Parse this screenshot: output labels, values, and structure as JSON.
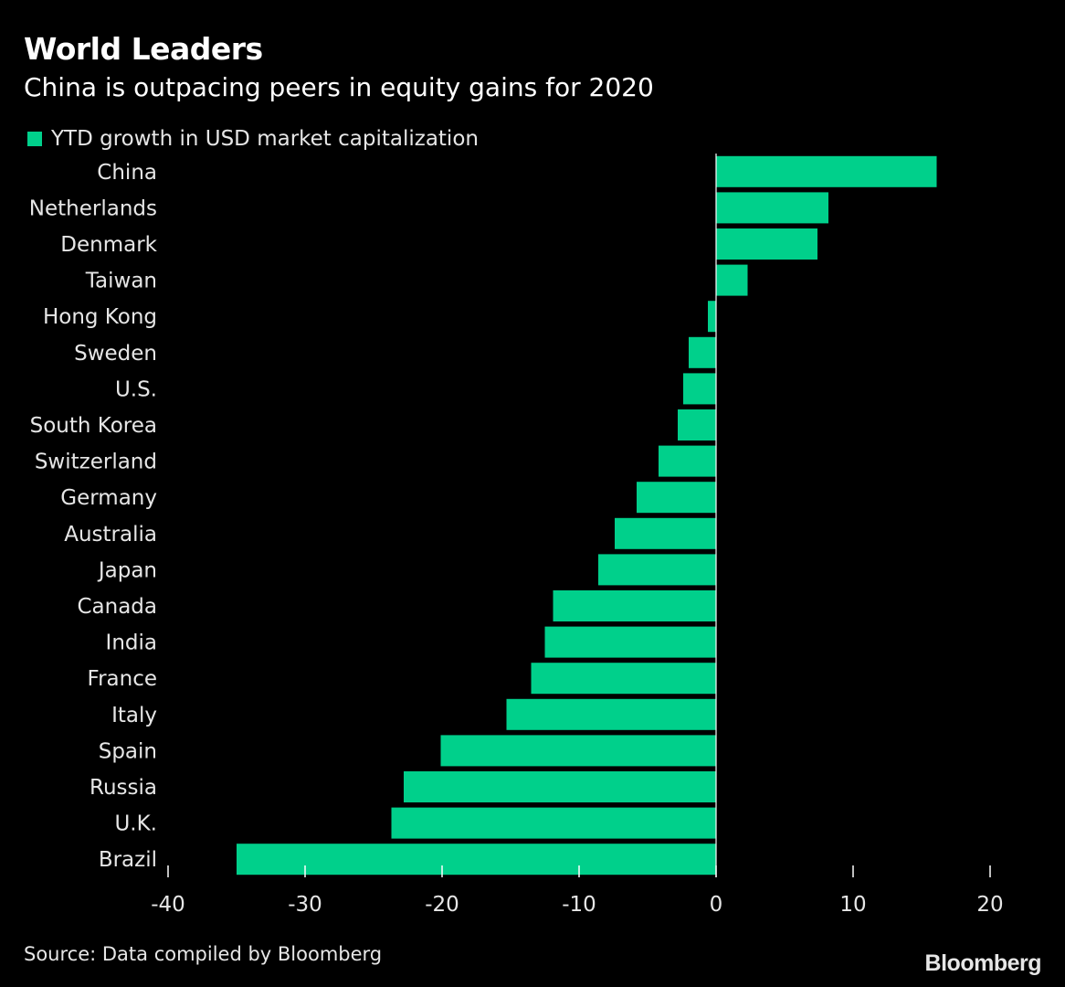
{
  "header": {
    "title": "World Leaders",
    "subtitle": "China is outpacing peers in equity gains for 2020"
  },
  "footer": {
    "source": "Source: Data compiled by Bloomberg",
    "brand": "Bloomberg"
  },
  "colors": {
    "background": "#000000",
    "bar": "#00d08b",
    "text": "#ffffff",
    "muted_text": "#e6e6e6"
  },
  "chart_data": {
    "type": "bar",
    "orientation": "horizontal",
    "title": "World Leaders",
    "subtitle": "China is outpacing peers in equity gains for 2020",
    "categories": [
      "China",
      "Netherlands",
      "Denmark",
      "Taiwan",
      "Hong Kong",
      "Sweden",
      "U.S.",
      "South Korea",
      "Switzerland",
      "Germany",
      "Australia",
      "Japan",
      "Canada",
      "India",
      "France",
      "Italy",
      "Spain",
      "Russia",
      "U.K.",
      "Brazil"
    ],
    "series": [
      {
        "name": "YTD growth in USD market capitalization",
        "values": [
          16.1,
          8.2,
          7.4,
          2.3,
          -0.6,
          -2.0,
          -2.4,
          -2.8,
          -4.2,
          -5.8,
          -7.4,
          -8.6,
          -11.9,
          -12.5,
          -13.5,
          -15.3,
          -20.1,
          -22.8,
          -23.7,
          -35.0
        ]
      }
    ],
    "xlim": [
      -40,
      20
    ],
    "xticks": [
      -40,
      -30,
      -20,
      -10,
      0,
      10,
      20
    ],
    "xlabel": "",
    "ylabel": "",
    "grid": false,
    "legend_position": "top-left"
  }
}
